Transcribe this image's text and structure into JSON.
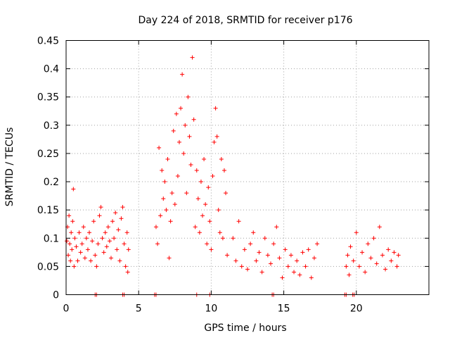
{
  "chart_data": {
    "type": "scatter",
    "title": "Day 224 of 2018, SRMTID for receiver p176",
    "xlabel": "GPS time / hours",
    "ylabel": "SRMTID / TECUs",
    "xlim": [
      0,
      25
    ],
    "ylim": [
      0,
      0.45
    ],
    "xticks": [
      0,
      5,
      10,
      15,
      20
    ],
    "yticks": [
      0,
      0.05,
      0.1,
      0.15,
      0.2,
      0.25,
      0.3,
      0.35,
      0.4,
      0.45
    ],
    "xtick_labels": [
      "0",
      "5",
      "10",
      "15",
      "20"
    ],
    "ytick_labels": [
      "0",
      "0.05",
      "0.1",
      "0.15",
      "0.2",
      "0.25",
      "0.3",
      "0.35",
      "0.4",
      "0.45"
    ],
    "grid": true,
    "marker": "+",
    "color": "#ff0000",
    "series": [
      {
        "name": "SRMTID",
        "points": [
          [
            0.05,
            0.095
          ],
          [
            0.1,
            0.12
          ],
          [
            0.15,
            0.07
          ],
          [
            0.2,
            0.14
          ],
          [
            0.25,
            0.09
          ],
          [
            0.3,
            0.06
          ],
          [
            0.35,
            0.11
          ],
          [
            0.4,
            0.08
          ],
          [
            0.45,
            0.13
          ],
          [
            0.5,
            0.187
          ],
          [
            0.55,
            0.05
          ],
          [
            0.6,
            0.1
          ],
          [
            0.7,
            0.085
          ],
          [
            0.8,
            0.06
          ],
          [
            0.9,
            0.11
          ],
          [
            1.0,
            0.075
          ],
          [
            1.1,
            0.09
          ],
          [
            1.2,
            0.12
          ],
          [
            1.3,
            0.065
          ],
          [
            1.4,
            0.1
          ],
          [
            1.5,
            0.08
          ],
          [
            1.6,
            0.11
          ],
          [
            1.7,
            0.06
          ],
          [
            1.8,
            0.095
          ],
          [
            1.9,
            0.13
          ],
          [
            2.0,
            0.07
          ],
          [
            2.1,
            0.05
          ],
          [
            2.2,
            0.09
          ],
          [
            2.3,
            0.14
          ],
          [
            2.4,
            0.155
          ],
          [
            2.5,
            0.1
          ],
          [
            2.6,
            0.075
          ],
          [
            2.7,
            0.11
          ],
          [
            2.8,
            0.085
          ],
          [
            2.9,
            0.12
          ],
          [
            3.0,
            0.095
          ],
          [
            3.1,
            0.065
          ],
          [
            3.2,
            0.13
          ],
          [
            3.3,
            0.1
          ],
          [
            3.4,
            0.145
          ],
          [
            3.5,
            0.08
          ],
          [
            3.6,
            0.115
          ],
          [
            3.7,
            0.06
          ],
          [
            3.8,
            0.135
          ],
          [
            3.9,
            0.155
          ],
          [
            4.0,
            0.09
          ],
          [
            4.1,
            0.05
          ],
          [
            4.2,
            0.11
          ],
          [
            4.25,
            0.04
          ],
          [
            4.3,
            0.08
          ],
          [
            6.2,
            0.12
          ],
          [
            6.3,
            0.09
          ],
          [
            6.4,
            0.26
          ],
          [
            6.5,
            0.14
          ],
          [
            6.6,
            0.22
          ],
          [
            6.7,
            0.17
          ],
          [
            6.8,
            0.2
          ],
          [
            6.9,
            0.15
          ],
          [
            7.0,
            0.24
          ],
          [
            7.1,
            0.065
          ],
          [
            7.2,
            0.13
          ],
          [
            7.3,
            0.18
          ],
          [
            7.4,
            0.29
          ],
          [
            7.5,
            0.16
          ],
          [
            7.6,
            0.32
          ],
          [
            7.7,
            0.21
          ],
          [
            7.8,
            0.27
          ],
          [
            7.9,
            0.33
          ],
          [
            8.0,
            0.39
          ],
          [
            8.1,
            0.25
          ],
          [
            8.2,
            0.3
          ],
          [
            8.3,
            0.18
          ],
          [
            8.4,
            0.35
          ],
          [
            8.5,
            0.28
          ],
          [
            8.6,
            0.23
          ],
          [
            8.7,
            0.42
          ],
          [
            8.8,
            0.31
          ],
          [
            8.9,
            0.12
          ],
          [
            9.0,
            0.22
          ],
          [
            9.1,
            0.17
          ],
          [
            9.2,
            0.11
          ],
          [
            9.3,
            0.2
          ],
          [
            9.4,
            0.14
          ],
          [
            9.5,
            0.24
          ],
          [
            9.6,
            0.16
          ],
          [
            9.7,
            0.09
          ],
          [
            9.8,
            0.19
          ],
          [
            9.9,
            0.13
          ],
          [
            10.0,
            0.08
          ],
          [
            10.1,
            0.21
          ],
          [
            10.2,
            0.27
          ],
          [
            10.3,
            0.33
          ],
          [
            10.4,
            0.28
          ],
          [
            10.5,
            0.15
          ],
          [
            10.6,
            0.11
          ],
          [
            10.7,
            0.24
          ],
          [
            10.8,
            0.1
          ],
          [
            10.9,
            0.22
          ],
          [
            11.0,
            0.18
          ],
          [
            11.1,
            0.07
          ],
          [
            11.5,
            0.1
          ],
          [
            11.7,
            0.06
          ],
          [
            11.9,
            0.13
          ],
          [
            12.1,
            0.05
          ],
          [
            12.3,
            0.08
          ],
          [
            12.5,
            0.045
          ],
          [
            12.7,
            0.09
          ],
          [
            12.9,
            0.11
          ],
          [
            13.1,
            0.06
          ],
          [
            13.3,
            0.075
          ],
          [
            13.5,
            0.04
          ],
          [
            13.7,
            0.1
          ],
          [
            13.9,
            0.07
          ],
          [
            14.1,
            0.055
          ],
          [
            14.3,
            0.09
          ],
          [
            14.5,
            0.12
          ],
          [
            14.7,
            0.065
          ],
          [
            14.9,
            0.03
          ],
          [
            15.1,
            0.08
          ],
          [
            15.3,
            0.05
          ],
          [
            15.5,
            0.07
          ],
          [
            15.7,
            0.04
          ],
          [
            15.9,
            0.06
          ],
          [
            16.1,
            0.035
          ],
          [
            16.3,
            0.075
          ],
          [
            16.5,
            0.05
          ],
          [
            16.7,
            0.08
          ],
          [
            16.9,
            0.03
          ],
          [
            17.1,
            0.065
          ],
          [
            17.3,
            0.09
          ],
          [
            19.3,
            0.05
          ],
          [
            19.4,
            0.07
          ],
          [
            19.5,
            0.035
          ],
          [
            19.6,
            0.085
          ],
          [
            19.8,
            0.06
          ],
          [
            20.0,
            0.11
          ],
          [
            20.2,
            0.05
          ],
          [
            20.4,
            0.075
          ],
          [
            20.6,
            0.04
          ],
          [
            20.8,
            0.09
          ],
          [
            21.0,
            0.065
          ],
          [
            21.2,
            0.1
          ],
          [
            21.4,
            0.055
          ],
          [
            21.6,
            0.12
          ],
          [
            21.8,
            0.07
          ],
          [
            22.0,
            0.045
          ],
          [
            22.2,
            0.08
          ],
          [
            22.4,
            0.06
          ],
          [
            22.6,
            0.075
          ],
          [
            22.8,
            0.05
          ],
          [
            22.9,
            0.07
          ],
          [
            2.0,
            0.0
          ],
          [
            2.1,
            0.0
          ],
          [
            3.9,
            0.0
          ],
          [
            4.0,
            0.0
          ],
          [
            6.1,
            0.0
          ],
          [
            6.2,
            0.0
          ],
          [
            9.0,
            0.0
          ],
          [
            9.9,
            0.0
          ],
          [
            14.2,
            0.0
          ],
          [
            14.3,
            0.0
          ],
          [
            19.2,
            0.0
          ],
          [
            19.3,
            0.0
          ],
          [
            19.75,
            0.0
          ],
          [
            19.85,
            0.0
          ]
        ]
      }
    ]
  }
}
